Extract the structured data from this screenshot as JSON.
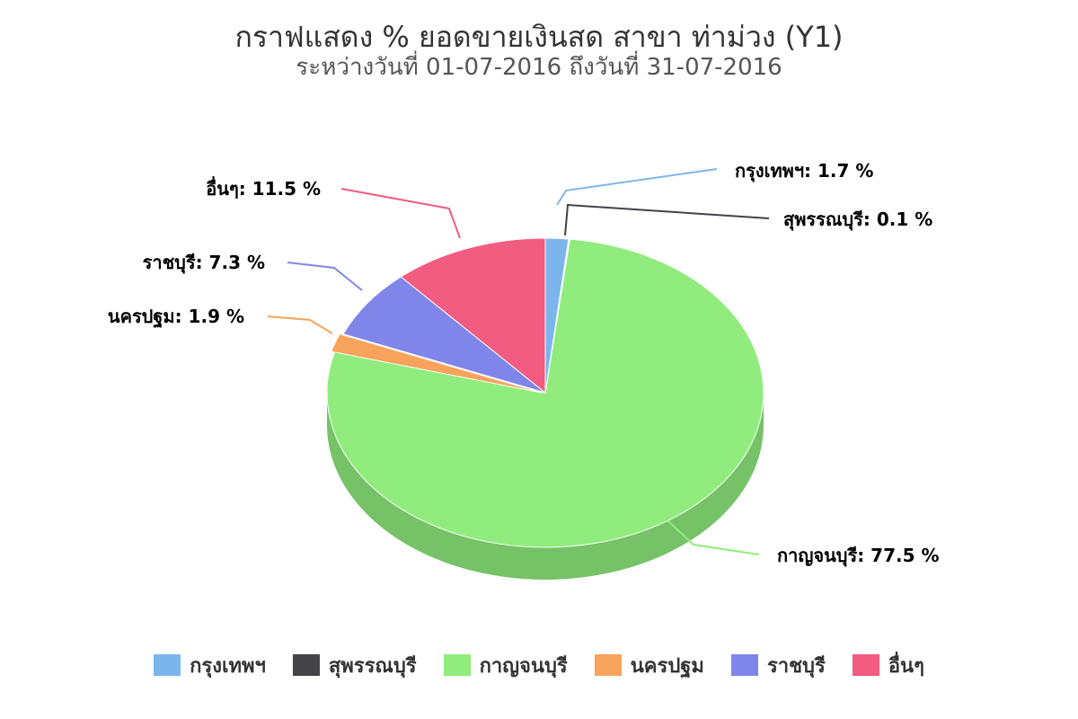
{
  "chart_data": {
    "type": "pie",
    "style": "3d",
    "title": "กราฟแสดง % ยอดขายเงินสด สาขา ท่าม่วง (Y1)",
    "subtitle": "ระหว่างวันที่ 01-07-2016 ถึงวันที่ 31-07-2016",
    "unit": "%",
    "legend_position": "bottom",
    "slices": [
      {
        "label": "กรุงเทพฯ",
        "value": 1.7,
        "color": "#7cb5ec",
        "data_label": "กรุงเทพฯ: 1.7 %"
      },
      {
        "label": "สุพรรณบุรี",
        "value": 0.1,
        "color": "#434348",
        "data_label": "สุพรรณบุรี: 0.1 %"
      },
      {
        "label": "กาญจนบุรี",
        "value": 77.5,
        "color": "#90ed7d",
        "data_label": "กาญจนบุรี: 77.5 %"
      },
      {
        "label": "นครปฐม",
        "value": 1.9,
        "color": "#f7a35c",
        "data_label": "นครปฐม: 1.9 %"
      },
      {
        "label": "ราชบุรี",
        "value": 7.3,
        "color": "#8085e9",
        "data_label": "ราชบุรี: 7.3 %"
      },
      {
        "label": "อื่นๆ",
        "value": 11.5,
        "color": "#f15c80",
        "data_label": "อื่นๆ: 11.5 %"
      }
    ]
  }
}
